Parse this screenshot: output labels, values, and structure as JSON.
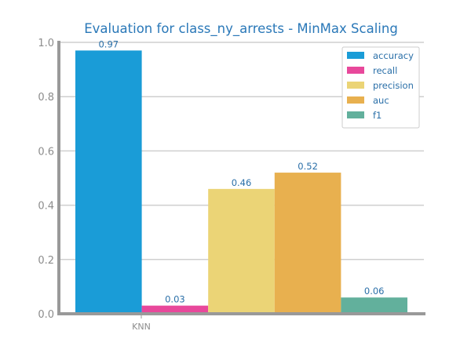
{
  "chart_data": {
    "type": "bar",
    "title": "Evaluation for class_ny_arrests - MinMax Scaling",
    "xlabel": "",
    "ylabel": "",
    "categories": [
      "KNN"
    ],
    "ylim": [
      0,
      1.0
    ],
    "yticks": [
      "0.0",
      "0.2",
      "0.4",
      "0.6",
      "0.8",
      "1.0"
    ],
    "grid": "horizontal",
    "legend_position": "top-right",
    "series": [
      {
        "name": "accuracy",
        "values": [
          0.97
        ],
        "label": "0.97",
        "color": "#1a9cd7"
      },
      {
        "name": "recall",
        "values": [
          0.03
        ],
        "label": "0.03",
        "color": "#e8489b"
      },
      {
        "name": "precision",
        "values": [
          0.46
        ],
        "label": "0.46",
        "color": "#ebd476"
      },
      {
        "name": "auc",
        "values": [
          0.52
        ],
        "label": "0.52",
        "color": "#e8b04f"
      },
      {
        "name": "f1",
        "values": [
          0.06
        ],
        "label": "0.06",
        "color": "#62b09c"
      }
    ]
  }
}
